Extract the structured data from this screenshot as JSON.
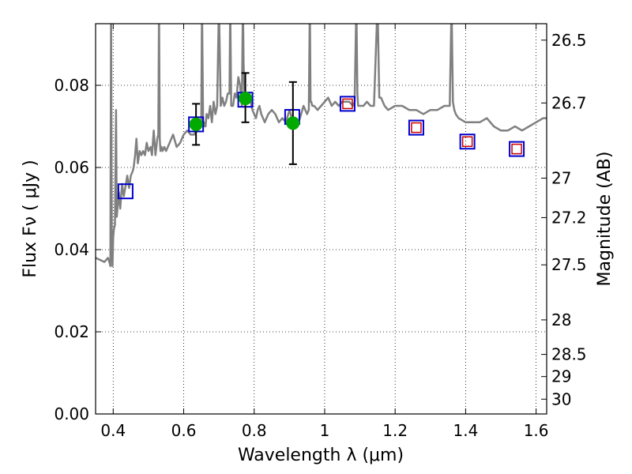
{
  "chart_data": {
    "type": "scatter",
    "xlabel": "Wavelength  λ (μm)",
    "ylabel": "Flux  Fν  ( μJy )",
    "y2label": "Magnitude (AB)",
    "xlim": [
      0.35,
      1.63
    ],
    "ylim": [
      0.0,
      0.095
    ],
    "grid": true,
    "x_ticks": [
      0.4,
      0.6,
      0.8,
      1.0,
      1.2,
      1.4,
      1.6
    ],
    "x_tick_labels": [
      "0.4",
      "0.6",
      "0.8",
      "1",
      "1.2",
      "1.4",
      "1.6"
    ],
    "y_ticks": [
      0.0,
      0.02,
      0.04,
      0.06,
      0.08
    ],
    "y_tick_labels": [
      "0.00",
      "0.02",
      "0.04",
      "0.06",
      "0.08"
    ],
    "y2_ticks": [
      {
        "label": "26.5",
        "flux": 0.091
      },
      {
        "label": "26.7",
        "flux": 0.0757
      },
      {
        "label": "27",
        "flux": 0.0574
      },
      {
        "label": "27.2",
        "flux": 0.0478
      },
      {
        "label": "27.5",
        "flux": 0.0363
      },
      {
        "label": "28",
        "flux": 0.0229
      },
      {
        "label": "28.5",
        "flux": 0.0145
      },
      {
        "label": "29",
        "flux": 0.0091
      },
      {
        "label": "30",
        "flux": 0.0036
      }
    ],
    "series": [
      {
        "kind": "line",
        "color": "#808080",
        "x": [
          0.35,
          0.375,
          0.385,
          0.389,
          0.392,
          0.394,
          0.396,
          0.398,
          0.4,
          0.402,
          0.405,
          0.408,
          0.41,
          0.412,
          0.416,
          0.42,
          0.425,
          0.43,
          0.436,
          0.44,
          0.445,
          0.45,
          0.455,
          0.458,
          0.462,
          0.466,
          0.47,
          0.475,
          0.48,
          0.485,
          0.49,
          0.495,
          0.5,
          0.506,
          0.51,
          0.515,
          0.52,
          0.525,
          0.528,
          0.53,
          0.532,
          0.534,
          0.537,
          0.54,
          0.545,
          0.55,
          0.56,
          0.57,
          0.58,
          0.59,
          0.6,
          0.61,
          0.62,
          0.63,
          0.64,
          0.65,
          0.652,
          0.655,
          0.657,
          0.659,
          0.662,
          0.665,
          0.67,
          0.675,
          0.68,
          0.685,
          0.69,
          0.695,
          0.7,
          0.705,
          0.71,
          0.715,
          0.72,
          0.725,
          0.73,
          0.732,
          0.735,
          0.74,
          0.745,
          0.75,
          0.755,
          0.76,
          0.765,
          0.768,
          0.77,
          0.772,
          0.775,
          0.78,
          0.785,
          0.79,
          0.795,
          0.8,
          0.805,
          0.81,
          0.815,
          0.82,
          0.83,
          0.84,
          0.85,
          0.86,
          0.87,
          0.88,
          0.89,
          0.9,
          0.91,
          0.92,
          0.93,
          0.94,
          0.95,
          0.955,
          0.958,
          0.96,
          0.962,
          0.965,
          0.97,
          0.98,
          0.99,
          1.0,
          1.01,
          1.02,
          1.03,
          1.04,
          1.05,
          1.06,
          1.07,
          1.08,
          1.085,
          1.09,
          1.093,
          1.095,
          1.1,
          1.11,
          1.12,
          1.13,
          1.14,
          1.15,
          1.155,
          1.16,
          1.17,
          1.18,
          1.2,
          1.22,
          1.24,
          1.26,
          1.28,
          1.3,
          1.32,
          1.34,
          1.355,
          1.36,
          1.364,
          1.368,
          1.372,
          1.38,
          1.4,
          1.42,
          1.44,
          1.46,
          1.48,
          1.5,
          1.52,
          1.54,
          1.56,
          1.58,
          1.6,
          1.62,
          1.63
        ],
        "y": [
          0.038,
          0.037,
          0.038,
          0.037,
          0.036,
          0.1,
          0.044,
          0.036,
          0.043,
          0.045,
          0.046,
          0.074,
          0.048,
          0.05,
          0.054,
          0.05,
          0.056,
          0.053,
          0.056,
          0.058,
          0.055,
          0.058,
          0.059,
          0.06,
          0.063,
          0.067,
          0.061,
          0.064,
          0.063,
          0.064,
          0.063,
          0.066,
          0.064,
          0.065,
          0.063,
          0.069,
          0.063,
          0.067,
          0.068,
          0.1,
          0.067,
          0.064,
          0.065,
          0.064,
          0.065,
          0.064,
          0.066,
          0.068,
          0.065,
          0.066,
          0.068,
          0.069,
          0.068,
          0.068,
          0.07,
          0.071,
          0.1,
          0.071,
          0.07,
          0.071,
          0.07,
          0.073,
          0.072,
          0.075,
          0.071,
          0.076,
          0.073,
          0.075,
          0.1,
          0.075,
          0.077,
          0.075,
          0.076,
          0.078,
          0.078,
          0.1,
          0.075,
          0.075,
          0.078,
          0.077,
          0.082,
          0.08,
          0.075,
          0.1,
          0.085,
          0.079,
          0.076,
          0.077,
          0.076,
          0.076,
          0.074,
          0.073,
          0.072,
          0.074,
          0.075,
          0.073,
          0.071,
          0.073,
          0.074,
          0.073,
          0.071,
          0.072,
          0.071,
          0.074,
          0.071,
          0.07,
          0.072,
          0.075,
          0.073,
          0.074,
          0.1,
          0.076,
          0.076,
          0.075,
          0.075,
          0.074,
          0.075,
          0.076,
          0.077,
          0.075,
          0.076,
          0.075,
          0.076,
          0.076,
          0.076,
          0.075,
          0.076,
          0.1,
          0.078,
          0.075,
          0.075,
          0.075,
          0.076,
          0.075,
          0.075,
          0.1,
          0.077,
          0.077,
          0.075,
          0.074,
          0.075,
          0.075,
          0.074,
          0.074,
          0.073,
          0.074,
          0.074,
          0.075,
          0.075,
          0.1,
          0.076,
          0.074,
          0.073,
          0.072,
          0.071,
          0.071,
          0.071,
          0.072,
          0.07,
          0.069,
          0.069,
          0.07,
          0.069,
          0.07,
          0.071,
          0.072,
          0.072
        ]
      },
      {
        "kind": "square",
        "color": "#0000cc",
        "x": [
          0.435,
          0.635,
          0.775,
          0.908,
          1.065,
          1.26,
          1.405,
          1.545
        ],
        "y": [
          0.0542,
          0.0705,
          0.0765,
          0.0723,
          0.0755,
          0.0697,
          0.0663,
          0.0645
        ]
      },
      {
        "kind": "small-square",
        "color": "#cc0000",
        "x": [
          1.065,
          1.26,
          1.405,
          1.545
        ],
        "y": [
          0.0755,
          0.0697,
          0.0663,
          0.0645
        ]
      },
      {
        "kind": "errorbar",
        "color": "#00aa00",
        "x": [
          0.635,
          0.775,
          0.91
        ],
        "y": [
          0.0705,
          0.0768,
          0.0708
        ],
        "yerr_low": [
          0.005,
          0.0058,
          0.01
        ],
        "yerr_high": [
          0.005,
          0.0062,
          0.01
        ]
      }
    ]
  }
}
